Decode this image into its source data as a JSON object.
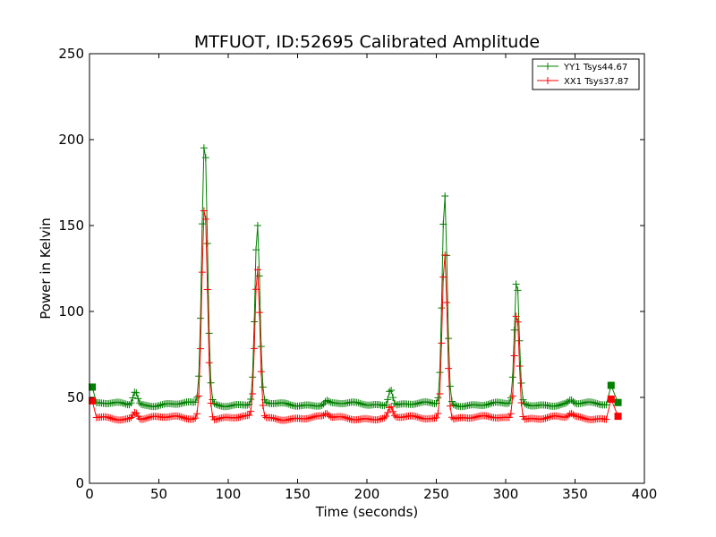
{
  "chart_data": {
    "type": "line",
    "title": "MTFUOT, ID:52695 Calibrated Amplitude",
    "xlabel": "Time (seconds)",
    "ylabel": "Power in Kelvin",
    "xlim": [
      0,
      400
    ],
    "ylim": [
      0,
      250
    ],
    "x_ticks": [
      "0",
      "50",
      "100",
      "150",
      "200",
      "250",
      "300",
      "350",
      "400"
    ],
    "y_ticks": [
      "0",
      "50",
      "100",
      "150",
      "200",
      "250"
    ],
    "grid": false,
    "legend_position": "top-right",
    "series": [
      {
        "name": "YY1 Tsys44.67",
        "color": "#008000",
        "baseline": 46,
        "start": [
          2,
          56
        ],
        "end_points": [
          [
            376,
            57
          ],
          [
            381,
            47
          ]
        ],
        "peaks": [
          {
            "x": 33,
            "y": 54,
            "w": 1.6
          },
          {
            "x": 83,
            "y": 200,
            "w": 2.0
          },
          {
            "x": 121,
            "y": 150,
            "w": 1.8
          },
          {
            "x": 171,
            "y": 48,
            "w": 1.5
          },
          {
            "x": 217,
            "y": 56,
            "w": 1.5
          },
          {
            "x": 256,
            "y": 168,
            "w": 1.8
          },
          {
            "x": 308,
            "y": 118,
            "w": 1.7
          },
          {
            "x": 347,
            "y": 48,
            "w": 1.5
          }
        ]
      },
      {
        "name": "XX1 Tsys37.87",
        "color": "#ff0000",
        "baseline": 38,
        "start": [
          2,
          48
        ],
        "end_points": [
          [
            376,
            49
          ],
          [
            381,
            39
          ]
        ],
        "peaks": [
          {
            "x": 33,
            "y": 42,
            "w": 1.6
          },
          {
            "x": 83,
            "y": 163,
            "w": 2.0
          },
          {
            "x": 121,
            "y": 125,
            "w": 1.8
          },
          {
            "x": 171,
            "y": 40,
            "w": 1.5
          },
          {
            "x": 217,
            "y": 44,
            "w": 1.5
          },
          {
            "x": 256,
            "y": 135,
            "w": 1.8
          },
          {
            "x": 308,
            "y": 101,
            "w": 1.7
          },
          {
            "x": 347,
            "y": 40,
            "w": 1.5
          }
        ]
      }
    ]
  }
}
